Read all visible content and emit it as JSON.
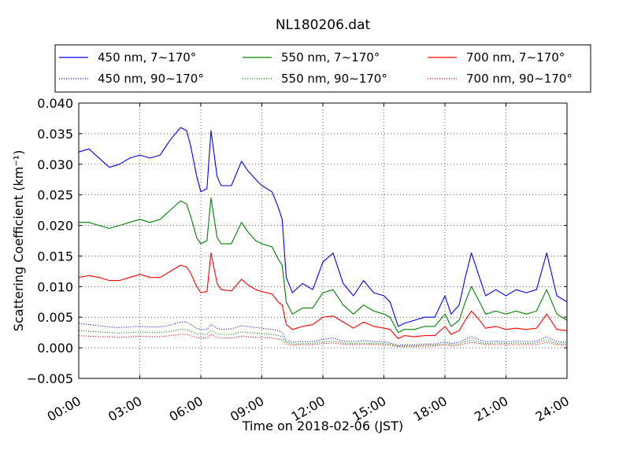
{
  "chart_data": {
    "type": "line",
    "title": "NL180206.dat",
    "xlabel": "Time on 2018-02-06 (JST)",
    "ylabel": "Scattering Coefficient (km⁻¹)",
    "xlim": [
      0,
      24
    ],
    "ylim": [
      -0.005,
      0.04
    ],
    "x_ticks": [
      0,
      3,
      6,
      9,
      12,
      15,
      18,
      21,
      24
    ],
    "x_tick_labels": [
      "00:00",
      "03:00",
      "06:00",
      "09:00",
      "12:00",
      "15:00",
      "18:00",
      "21:00",
      "24:00"
    ],
    "y_ticks": [
      -0.005,
      0.0,
      0.005,
      0.01,
      0.015,
      0.02,
      0.025,
      0.03,
      0.035,
      0.04
    ],
    "y_tick_labels": [
      "−0.005",
      "0.000",
      "0.005",
      "0.010",
      "0.015",
      "0.020",
      "0.025",
      "0.030",
      "0.035",
      "0.040"
    ],
    "grid": true,
    "legend_position": "top",
    "x": [
      0,
      0.5,
      1,
      1.5,
      2,
      2.5,
      3,
      3.5,
      4,
      4.5,
      5,
      5.3,
      5.5,
      5.8,
      6,
      6.3,
      6.5,
      6.8,
      7,
      7.5,
      8,
      8.3,
      8.7,
      9,
      9.5,
      9.8,
      10,
      10.2,
      10.5,
      11,
      11.5,
      12,
      12.5,
      13,
      13.5,
      14,
      14.5,
      15,
      15.3,
      15.7,
      16,
      16.5,
      17,
      17.5,
      18,
      18.3,
      18.7,
      19,
      19.3,
      19.7,
      20,
      20.5,
      21,
      21.5,
      22,
      22.5,
      23,
      23.5,
      24
    ],
    "series": [
      {
        "name": "450 nm, 7∼170°",
        "color": "#0000ff",
        "style": "solid",
        "values": [
          0.032,
          0.0325,
          0.031,
          0.0295,
          0.03,
          0.031,
          0.0315,
          0.031,
          0.0315,
          0.034,
          0.036,
          0.0355,
          0.033,
          0.028,
          0.0255,
          0.026,
          0.0355,
          0.028,
          0.0265,
          0.0265,
          0.0305,
          0.029,
          0.0275,
          0.0265,
          0.0255,
          0.023,
          0.021,
          0.0115,
          0.009,
          0.0105,
          0.0095,
          0.014,
          0.0155,
          0.0105,
          0.0085,
          0.011,
          0.009,
          0.0085,
          0.0075,
          0.0035,
          0.004,
          0.0045,
          0.005,
          0.005,
          0.0085,
          0.0055,
          0.007,
          0.0115,
          0.0155,
          0.0115,
          0.0085,
          0.0095,
          0.0085,
          0.0095,
          0.009,
          0.0095,
          0.0155,
          0.0085,
          0.0075
        ]
      },
      {
        "name": "550 nm, 7∼170°",
        "color": "#008000",
        "style": "solid",
        "values": [
          0.0205,
          0.0205,
          0.02,
          0.0195,
          0.02,
          0.0205,
          0.021,
          0.0205,
          0.021,
          0.0225,
          0.024,
          0.0235,
          0.0215,
          0.018,
          0.017,
          0.0175,
          0.0245,
          0.018,
          0.017,
          0.017,
          0.0205,
          0.019,
          0.0175,
          0.017,
          0.0165,
          0.0145,
          0.0135,
          0.0075,
          0.0055,
          0.0065,
          0.0065,
          0.009,
          0.0095,
          0.007,
          0.0055,
          0.007,
          0.006,
          0.0055,
          0.005,
          0.0025,
          0.003,
          0.003,
          0.0035,
          0.0035,
          0.0055,
          0.0035,
          0.0045,
          0.0075,
          0.01,
          0.0075,
          0.0055,
          0.006,
          0.0055,
          0.006,
          0.0055,
          0.006,
          0.0095,
          0.0055,
          0.0045
        ]
      },
      {
        "name": "700 nm, 7∼170°",
        "color": "#ff0000",
        "style": "solid",
        "values": [
          0.0115,
          0.0118,
          0.0115,
          0.011,
          0.011,
          0.0115,
          0.012,
          0.0115,
          0.0115,
          0.0125,
          0.0135,
          0.0132,
          0.0122,
          0.01,
          0.009,
          0.0092,
          0.0155,
          0.0105,
          0.0095,
          0.0093,
          0.0112,
          0.0103,
          0.0095,
          0.0092,
          0.0088,
          0.0075,
          0.007,
          0.0038,
          0.003,
          0.0035,
          0.0038,
          0.005,
          0.0052,
          0.0042,
          0.0032,
          0.0042,
          0.0035,
          0.0032,
          0.003,
          0.0015,
          0.002,
          0.0018,
          0.002,
          0.002,
          0.0035,
          0.0022,
          0.0028,
          0.0045,
          0.006,
          0.0045,
          0.0032,
          0.0035,
          0.003,
          0.0032,
          0.003,
          0.0032,
          0.0055,
          0.003,
          0.0028
        ]
      },
      {
        "name": "450 nm, 90∼170°",
        "color": "#0000ff",
        "style": "dotted",
        "values": [
          0.004,
          0.0038,
          0.0036,
          0.0034,
          0.0033,
          0.0034,
          0.0035,
          0.0034,
          0.0034,
          0.0037,
          0.0042,
          0.0042,
          0.0038,
          0.0032,
          0.003,
          0.003,
          0.0038,
          0.0032,
          0.003,
          0.0031,
          0.0036,
          0.0035,
          0.0033,
          0.0032,
          0.003,
          0.0028,
          0.0025,
          0.0012,
          0.0009,
          0.001,
          0.001,
          0.0014,
          0.0016,
          0.0011,
          0.001,
          0.0012,
          0.001,
          0.001,
          0.0008,
          0.0004,
          0.0005,
          0.0005,
          0.0006,
          0.0006,
          0.001,
          0.0007,
          0.0009,
          0.0014,
          0.0018,
          0.0013,
          0.001,
          0.0011,
          0.001,
          0.0011,
          0.001,
          0.0011,
          0.0018,
          0.001,
          0.0009
        ]
      },
      {
        "name": "550 nm, 90∼170°",
        "color": "#008000",
        "style": "dotted",
        "values": [
          0.0028,
          0.0027,
          0.0026,
          0.0025,
          0.0024,
          0.0025,
          0.0026,
          0.0025,
          0.0025,
          0.0027,
          0.003,
          0.003,
          0.0027,
          0.0023,
          0.0022,
          0.0022,
          0.0028,
          0.0023,
          0.0022,
          0.0022,
          0.0026,
          0.0025,
          0.0024,
          0.0023,
          0.0022,
          0.002,
          0.0018,
          0.0009,
          0.0006,
          0.0007,
          0.0007,
          0.001,
          0.0011,
          0.0008,
          0.0007,
          0.0008,
          0.0007,
          0.0007,
          0.0006,
          0.0003,
          0.0003,
          0.0003,
          0.0004,
          0.0004,
          0.0007,
          0.0005,
          0.0006,
          0.001,
          0.0013,
          0.0009,
          0.0007,
          0.0008,
          0.0007,
          0.0008,
          0.0007,
          0.0008,
          0.0013,
          0.0007,
          0.0006
        ]
      },
      {
        "name": "700 nm, 90∼170°",
        "color": "#ff0000",
        "style": "dotted",
        "values": [
          0.002,
          0.0019,
          0.0018,
          0.0018,
          0.0017,
          0.0018,
          0.0019,
          0.0018,
          0.0018,
          0.002,
          0.0022,
          0.0022,
          0.002,
          0.0017,
          0.0016,
          0.0016,
          0.0022,
          0.0017,
          0.0016,
          0.0016,
          0.0019,
          0.0018,
          0.0017,
          0.0017,
          0.0016,
          0.0014,
          0.0013,
          0.0006,
          0.0004,
          0.0005,
          0.0005,
          0.0007,
          0.0008,
          0.0006,
          0.0005,
          0.0006,
          0.0005,
          0.0005,
          0.0004,
          0.0002,
          0.0002,
          0.0002,
          0.0003,
          0.0003,
          0.0005,
          0.0003,
          0.0004,
          0.0007,
          0.0009,
          0.0007,
          0.0005,
          0.0005,
          0.0005,
          0.0005,
          0.0005,
          0.0005,
          0.0009,
          0.0005,
          0.0004
        ]
      }
    ]
  }
}
